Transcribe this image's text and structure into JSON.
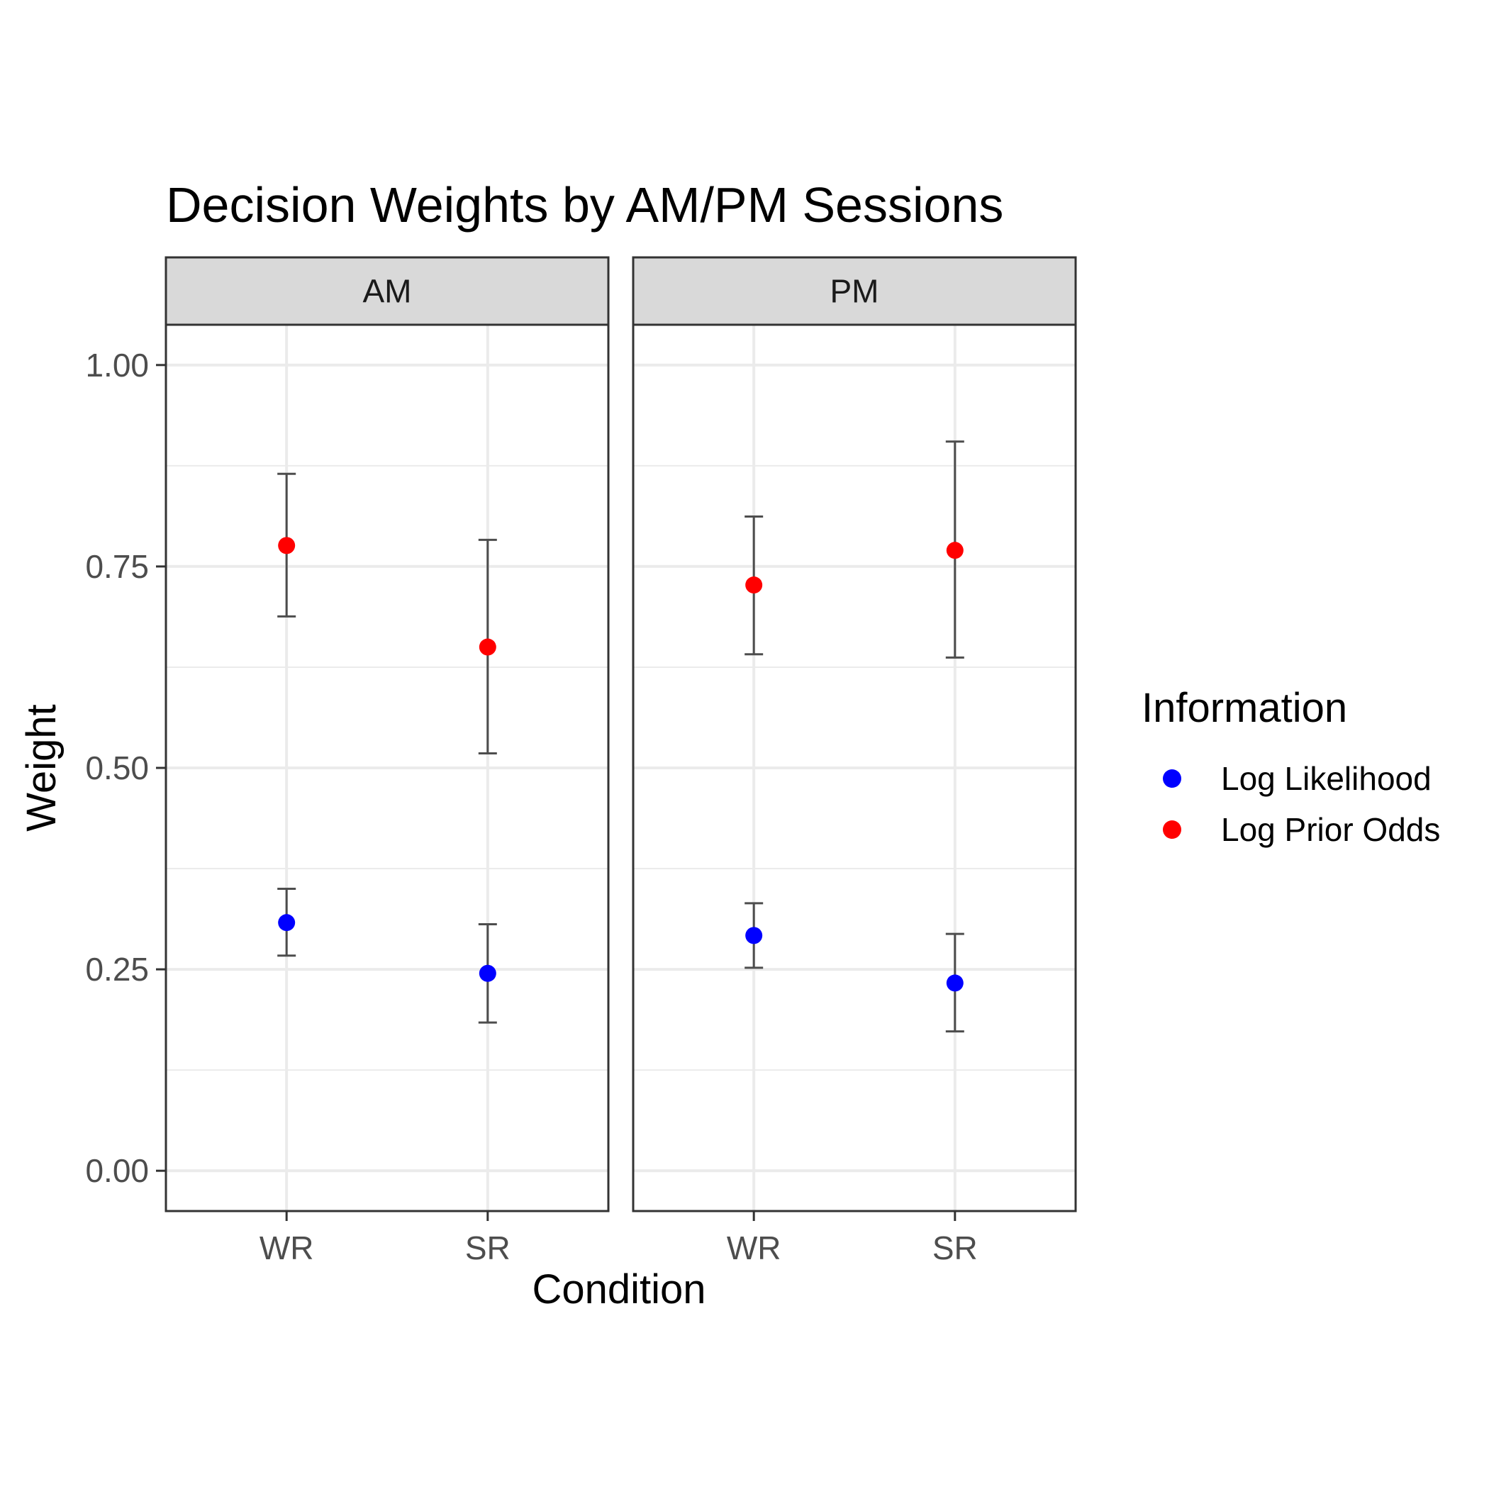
{
  "chart_data": {
    "type": "scatter",
    "title": "Decision Weights by AM/PM Sessions",
    "xlabel": "Condition",
    "ylabel": "Weight",
    "categories": [
      "WR",
      "SR"
    ],
    "facets": [
      "AM",
      "PM"
    ],
    "ylim": [
      -0.05,
      1.05
    ],
    "yticks": [
      0.0,
      0.25,
      0.5,
      0.75,
      1.0
    ],
    "ytick_labels": [
      "0.00",
      "0.25",
      "0.50",
      "0.75",
      "1.00"
    ],
    "grid": true,
    "legend": {
      "title": "Information",
      "position": "right"
    },
    "series": [
      {
        "name": "Log Likelihood",
        "color": "#0000ff",
        "data": {
          "AM": [
            {
              "x": "WR",
              "y": 0.308,
              "ymin": 0.267,
              "ymax": 0.35
            },
            {
              "x": "SR",
              "y": 0.245,
              "ymin": 0.184,
              "ymax": 0.306
            }
          ],
          "PM": [
            {
              "x": "WR",
              "y": 0.292,
              "ymin": 0.252,
              "ymax": 0.332
            },
            {
              "x": "SR",
              "y": 0.233,
              "ymin": 0.173,
              "ymax": 0.294
            }
          ]
        }
      },
      {
        "name": "Log Prior Odds",
        "color": "#ff0000",
        "data": {
          "AM": [
            {
              "x": "WR",
              "y": 0.776,
              "ymin": 0.688,
              "ymax": 0.865
            },
            {
              "x": "SR",
              "y": 0.65,
              "ymin": 0.518,
              "ymax": 0.783
            }
          ],
          "PM": [
            {
              "x": "WR",
              "y": 0.727,
              "ymin": 0.641,
              "ymax": 0.812
            },
            {
              "x": "SR",
              "y": 0.77,
              "ymin": 0.637,
              "ymax": 0.905
            }
          ]
        }
      }
    ]
  }
}
